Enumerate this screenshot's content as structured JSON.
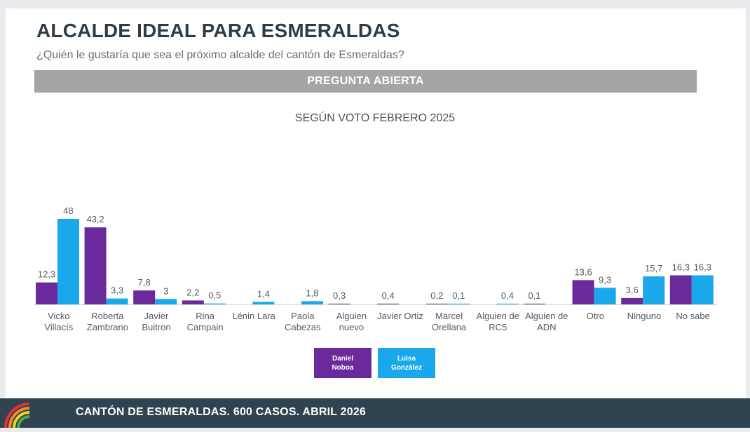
{
  "header": {
    "title": "ALCALDE IDEAL PARA ESMERALDAS",
    "subtitle": "¿Quién le gustaría que sea el próximo alcalde del cantón de Esmeraldas?",
    "band_label": "PREGUNTA ABIERTA"
  },
  "footer": {
    "text": "CANTÓN DE ESMERALDAS. 600 CASOS. ABRIL 2026"
  },
  "colors": {
    "noboa": "#6a2a9c",
    "gonzalez": "#1aa8ec",
    "band": "#a3a5a7",
    "footer": "#2f4350"
  },
  "chart_data": {
    "type": "bar",
    "title": "SEGÚN VOTO FEBRERO 2025",
    "categories": [
      [
        "Vicko",
        "Villacís"
      ],
      [
        "Roberta",
        "Zambrano"
      ],
      [
        "Javier",
        "Buitron"
      ],
      [
        "Rina",
        "Campain"
      ],
      [
        "Lénin Lara"
      ],
      [
        "Paola",
        "Cabezas"
      ],
      [
        "Alguien",
        "nuevo"
      ],
      [
        "Javier Ortiz"
      ],
      [
        "Marcel",
        "Orellana"
      ],
      [
        "Alguien de",
        "RC5"
      ],
      [
        "Alguien de",
        "ADN"
      ],
      [
        "Otro"
      ],
      [
        "Ninguno"
      ],
      [
        "No sabe"
      ]
    ],
    "series": [
      {
        "name": "Daniel Noboa",
        "legend_lines": [
          "Daniel",
          "Noboa"
        ],
        "color": "#6a2a9c",
        "values": [
          12.3,
          43.2,
          7.8,
          2.2,
          null,
          null,
          0.3,
          0.4,
          0.2,
          null,
          0.1,
          13.6,
          3.6,
          16.3
        ],
        "labels": [
          "12,3",
          "43,2",
          "7,8",
          "2,2",
          "",
          "",
          "0,3",
          "0,4",
          "0,2",
          "",
          "0,1",
          "13,6",
          "3,6",
          "16,3"
        ]
      },
      {
        "name": "Luisa González",
        "legend_lines": [
          "Luisa",
          "González"
        ],
        "color": "#1aa8ec",
        "values": [
          48,
          3.3,
          3,
          0.5,
          1.4,
          1.8,
          null,
          null,
          0.1,
          0.4,
          null,
          9.3,
          15.7,
          16.3
        ],
        "labels": [
          "48",
          "3,3",
          "3",
          "0,5",
          "1,4",
          "1,8",
          "",
          "",
          "0,1",
          "0,4",
          "",
          "9,3",
          "15,7",
          "16,3"
        ]
      }
    ],
    "ylim": [
      0,
      48
    ],
    "legend_position": "bottom-center",
    "grid": false
  }
}
